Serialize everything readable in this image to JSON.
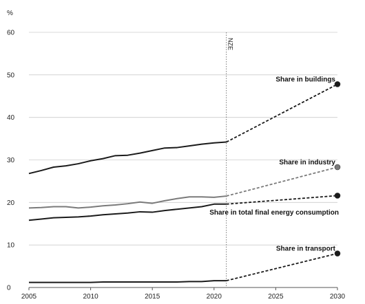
{
  "chart_data": {
    "type": "line",
    "title": "",
    "unit_label": "%",
    "xlabel": "",
    "ylabel": "",
    "xlim": [
      2005,
      2030
    ],
    "ylim": [
      0,
      60
    ],
    "x_ticks": [
      2005,
      2010,
      2015,
      2020,
      2025,
      2030
    ],
    "y_ticks": [
      0,
      10,
      20,
      30,
      40,
      50,
      60
    ],
    "grid": "horizontal",
    "marker": {
      "x": 2021,
      "label": "NZE"
    },
    "projection": {
      "from": 2021,
      "to": 2030,
      "style": "dashed"
    },
    "colors": {
      "dark": "#1a1a1a",
      "grey": "#7a7a7a",
      "grid": "#cccccc"
    },
    "series": [
      {
        "name": "Share in buildings",
        "color": "#1a1a1a",
        "x": [
          2005,
          2006,
          2007,
          2008,
          2009,
          2010,
          2011,
          2012,
          2013,
          2014,
          2015,
          2016,
          2017,
          2018,
          2019,
          2020,
          2021
        ],
        "values": [
          26.8,
          27.5,
          28.3,
          28.6,
          29.1,
          29.8,
          30.3,
          31.0,
          31.1,
          31.6,
          32.2,
          32.8,
          32.9,
          33.3,
          33.7,
          34.0,
          34.2
        ],
        "projection_end": 47.8
      },
      {
        "name": "Share in industry",
        "color": "#7a7a7a",
        "x": [
          2005,
          2006,
          2007,
          2008,
          2009,
          2010,
          2011,
          2012,
          2013,
          2014,
          2015,
          2016,
          2017,
          2018,
          2019,
          2020,
          2021
        ],
        "values": [
          18.7,
          18.8,
          19.0,
          19.0,
          18.7,
          18.9,
          19.2,
          19.4,
          19.7,
          20.1,
          19.8,
          20.4,
          20.9,
          21.3,
          21.3,
          21.2,
          21.5
        ],
        "projection_end": 28.3
      },
      {
        "name": "Share in total final energy consumption",
        "color": "#1a1a1a",
        "x": [
          2005,
          2006,
          2007,
          2008,
          2009,
          2010,
          2011,
          2012,
          2013,
          2014,
          2015,
          2016,
          2017,
          2018,
          2019,
          2020,
          2021
        ],
        "values": [
          15.8,
          16.1,
          16.4,
          16.5,
          16.6,
          16.8,
          17.1,
          17.3,
          17.5,
          17.8,
          17.7,
          18.1,
          18.4,
          18.7,
          19.0,
          19.6,
          19.6
        ],
        "projection_end": 21.6
      },
      {
        "name": "Share in transport",
        "color": "#1a1a1a",
        "x": [
          2005,
          2006,
          2007,
          2008,
          2009,
          2010,
          2011,
          2012,
          2013,
          2014,
          2015,
          2016,
          2017,
          2018,
          2019,
          2020,
          2021
        ],
        "values": [
          1.2,
          1.2,
          1.2,
          1.2,
          1.2,
          1.2,
          1.3,
          1.3,
          1.3,
          1.3,
          1.3,
          1.3,
          1.3,
          1.4,
          1.4,
          1.6,
          1.6
        ],
        "projection_end": 8.0
      }
    ]
  }
}
